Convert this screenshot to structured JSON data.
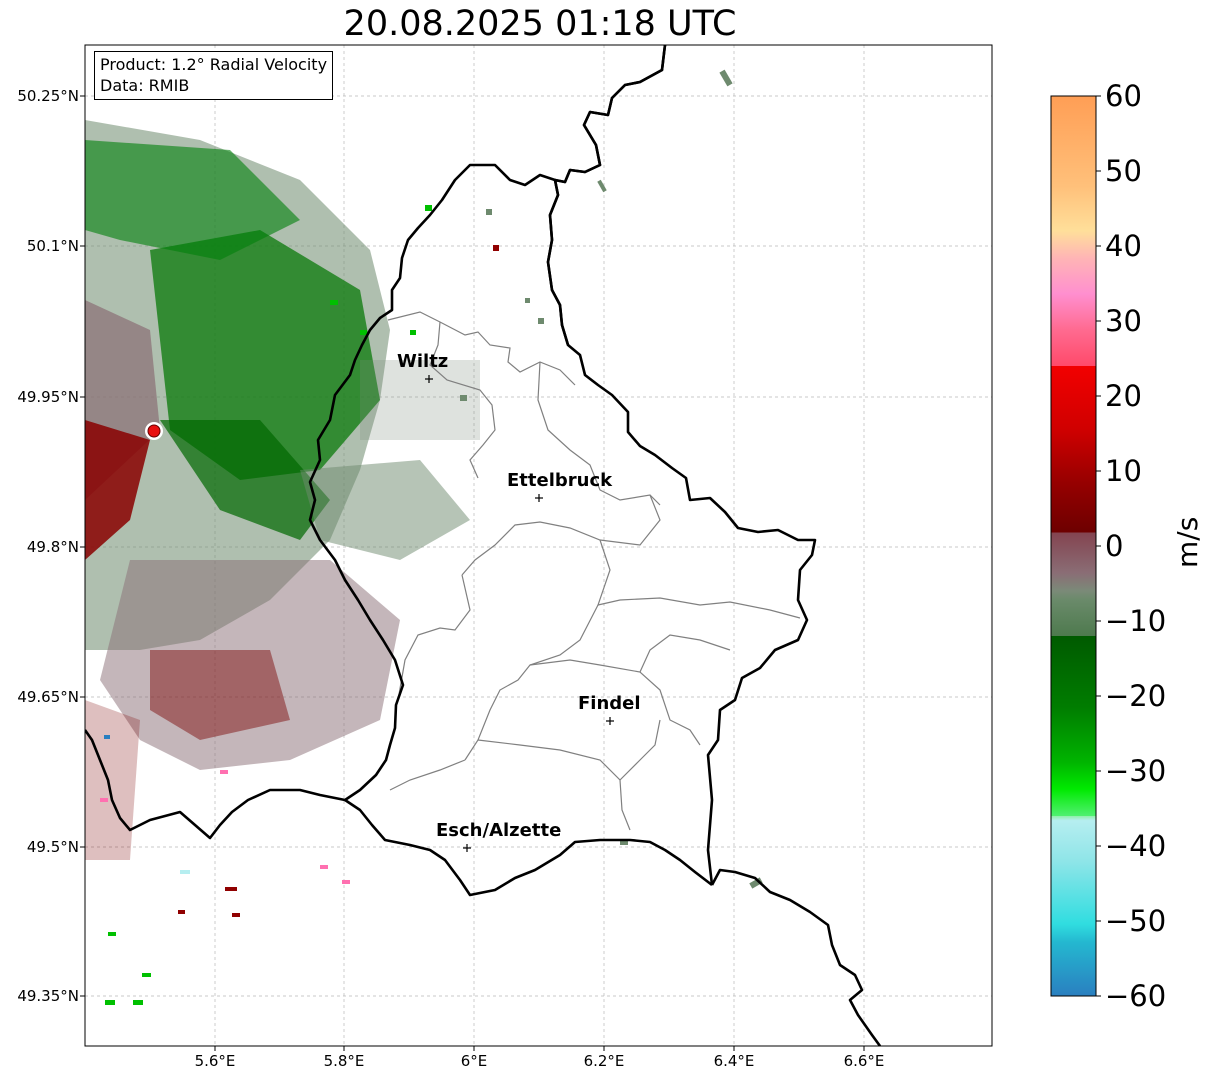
{
  "title": "20.08.2025 01:18 UTC",
  "info": {
    "product": "Product: 1.2° Radial Velocity",
    "data": "Data: RMIB"
  },
  "axes": {
    "lat_labels": [
      "50.25°N",
      "50.1°N",
      "49.95°N",
      "49.8°N",
      "49.65°N",
      "49.5°N",
      "49.35°N"
    ],
    "lon_labels": [
      "5.6°E",
      "5.8°E",
      "6°E",
      "6.2°E",
      "6.4°E",
      "6.6°E"
    ]
  },
  "cities": [
    {
      "name": "Wiltz"
    },
    {
      "name": "Ettelbruck"
    },
    {
      "name": "Findel"
    },
    {
      "name": "Esch/Alzette"
    }
  ],
  "colorbar": {
    "unit": "m/s",
    "min": -60,
    "max": 60,
    "ticks": [
      "60",
      "50",
      "40",
      "30",
      "20",
      "10",
      "0",
      "−10",
      "−20",
      "−30",
      "−40",
      "−50",
      "−60"
    ],
    "colors": {
      "orange": "#ff9e55",
      "pink": "#ff7fbf",
      "red": "#ee0000",
      "darkred": "#7a0000",
      "neutral_red": "#8a6d73",
      "neutral_green": "#6e8b6e",
      "darkgreen": "#005a00",
      "green": "#00d000",
      "lightgreen": "#90f0a0",
      "cyan": "#30dde0",
      "blue": "#2a82c0"
    }
  }
}
